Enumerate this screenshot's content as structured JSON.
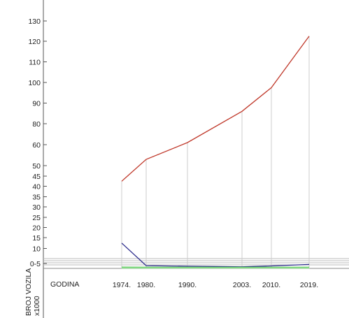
{
  "chart_data": {
    "type": "line",
    "title": "",
    "xlabel": "GODINA",
    "ylabel": "BROJ VOZILA",
    "ylabel_unit": "x1000",
    "categories": [
      "1974.",
      "1980.",
      "1990.",
      "2003.",
      "2010.",
      "2019."
    ],
    "x": [
      1974,
      1980,
      1990,
      2003,
      2010,
      2019
    ],
    "y_ticks": [
      "130",
      "120",
      "110",
      "100",
      "90",
      "80",
      "60",
      "50",
      "45",
      "40",
      "35",
      "30",
      "25",
      "20",
      "15",
      "10",
      "0-5"
    ],
    "series": [
      {
        "color": "#c0392b",
        "values": [
          42.5,
          53,
          62,
          86,
          97.5,
          122.5
        ]
      },
      {
        "color": "#2c2c8c",
        "values": [
          12.5,
          2.8,
          2.2,
          1.6,
          2.5,
          4.0
        ]
      },
      {
        "color": "#22aa22",
        "values": [
          1.0,
          0.9,
          0.9,
          0.9,
          0.9,
          0.9
        ]
      },
      {
        "color": "#90e090",
        "values": [
          0.6,
          0.5,
          0.5,
          0.5,
          0.5,
          0.5
        ]
      }
    ],
    "grid": false,
    "vertical_drop_lines": true
  }
}
